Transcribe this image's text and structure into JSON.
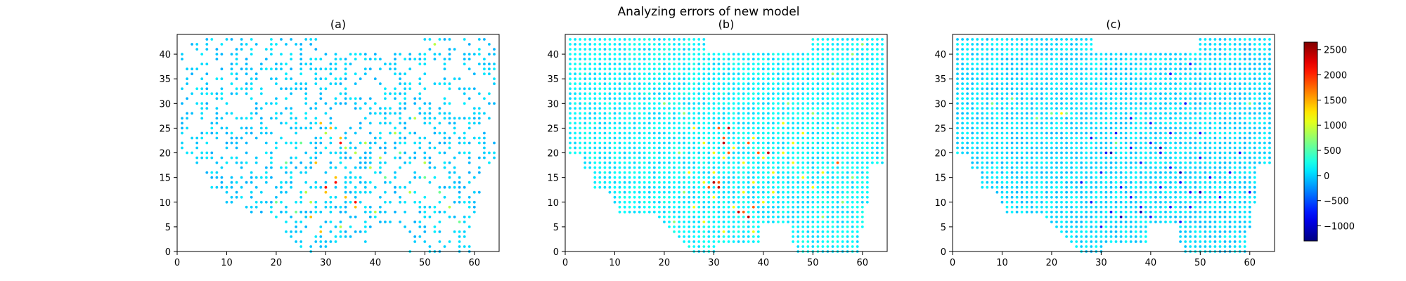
{
  "chart_data": {
    "type": "scatter",
    "title": "Analyzing errors of new model",
    "colormap": "jet",
    "colorbar": {
      "range": [
        -1300,
        2650
      ],
      "ticks": [
        -1000,
        -500,
        0,
        500,
        1000,
        1500,
        2000,
        2500
      ],
      "tick_labels": [
        "−1000",
        "−500",
        "0",
        "500",
        "1000",
        "1500",
        "2000",
        "2500"
      ]
    },
    "panels": [
      {
        "title": "(a)",
        "xlim": [
          0,
          65
        ],
        "ylim": [
          0,
          44
        ],
        "xticks": [
          0,
          10,
          20,
          30,
          40,
          50,
          60
        ],
        "yticks": [
          0,
          5,
          10,
          15,
          20,
          25,
          30,
          35,
          40
        ],
        "background_value": 0,
        "coverage": "sparse",
        "point_groups": [
          {
            "value": 1400,
            "points": [
              [
                29,
                26
              ],
              [
                31,
                25
              ],
              [
                33,
                23
              ],
              [
                28,
                18
              ],
              [
                32,
                15
              ],
              [
                30,
                12
              ],
              [
                34,
                11
              ],
              [
                27,
                7
              ],
              [
                36,
                9
              ],
              [
                29,
                4
              ]
            ]
          },
          {
            "value": 2100,
            "points": [
              [
                33,
                22
              ],
              [
                32,
                14
              ],
              [
                36,
                10
              ],
              [
                30,
                13
              ]
            ]
          },
          {
            "value": 900,
            "points": [
              [
                30,
                24
              ],
              [
                34,
                21
              ],
              [
                36,
                20
              ],
              [
                38,
                22
              ],
              [
                39,
                17
              ],
              [
                41,
                19
              ],
              [
                44,
                24
              ],
              [
                48,
                27
              ],
              [
                27,
                10
              ],
              [
                26,
                12
              ],
              [
                33,
                5
              ],
              [
                40,
                8
              ],
              [
                47,
                12
              ],
              [
                50,
                18
              ],
              [
                55,
                9
              ],
              [
                52,
                42
              ]
            ]
          },
          {
            "value": 600,
            "points": [
              [
                22,
                18
              ],
              [
                25,
                22
              ],
              [
                42,
                15
              ],
              [
                45,
                20
              ],
              [
                50,
                15
              ],
              [
                53,
                12
              ],
              [
                57,
                6
              ],
              [
                20,
                10
              ],
              [
                24,
                8
              ]
            ]
          }
        ]
      },
      {
        "title": "(b)",
        "xlim": [
          0,
          65
        ],
        "ylim": [
          0,
          44
        ],
        "xticks": [
          0,
          10,
          20,
          30,
          40,
          50,
          60
        ],
        "yticks": [
          0,
          5,
          10,
          15,
          20,
          25,
          30,
          35,
          40
        ],
        "background_value": 150,
        "coverage": "dense",
        "point_groups": [
          {
            "value": 1100,
            "points": [
              [
                26,
                25
              ],
              [
                28,
                22
              ],
              [
                30,
                20
              ],
              [
                32,
                19
              ],
              [
                34,
                21
              ],
              [
                36,
                18
              ],
              [
                38,
                23
              ],
              [
                40,
                19
              ],
              [
                42,
                16
              ],
              [
                44,
                20
              ],
              [
                46,
                18
              ],
              [
                48,
                15
              ],
              [
                50,
                13
              ],
              [
                52,
                16
              ],
              [
                28,
                14
              ],
              [
                30,
                11
              ],
              [
                34,
                9
              ],
              [
                36,
                12
              ],
              [
                38,
                14
              ],
              [
                26,
                9
              ],
              [
                28,
                6
              ],
              [
                32,
                4
              ],
              [
                38,
                4
              ],
              [
                40,
                10
              ],
              [
                42,
                12
              ],
              [
                30,
                16
              ],
              [
                25,
                16
              ],
              [
                46,
                22
              ],
              [
                48,
                24
              ],
              [
                44,
                26
              ]
            ]
          },
          {
            "value": 1800,
            "points": [
              [
                31,
                25
              ],
              [
                32,
                23
              ],
              [
                33,
                20
              ],
              [
                37,
                22
              ],
              [
                39,
                20
              ],
              [
                31,
                14
              ],
              [
                36,
                8
              ],
              [
                38,
                9
              ],
              [
                29,
                13
              ],
              [
                55,
                18
              ]
            ]
          },
          {
            "value": 2400,
            "points": [
              [
                32,
                22
              ],
              [
                33,
                25
              ],
              [
                30,
                14
              ],
              [
                35,
                8
              ],
              [
                37,
                7
              ],
              [
                41,
                20
              ],
              [
                31,
                13
              ]
            ]
          },
          {
            "value": 700,
            "points": [
              [
                23,
                20
              ],
              [
                24,
                28
              ],
              [
                20,
                30
              ],
              [
                45,
                30
              ],
              [
                50,
                28
              ],
              [
                55,
                25
              ],
              [
                58,
                15
              ],
              [
                56,
                10
              ],
              [
                52,
                7
              ],
              [
                24,
                12
              ],
              [
                22,
                6
              ],
              [
                54,
                36
              ],
              [
                58,
                40
              ],
              [
                60,
                42
              ]
            ]
          }
        ]
      },
      {
        "title": "(c)",
        "xlim": [
          0,
          65
        ],
        "ylim": [
          0,
          44
        ],
        "xticks": [
          0,
          10,
          20,
          30,
          40,
          50,
          60
        ],
        "yticks": [
          0,
          5,
          10,
          15,
          20,
          25,
          30,
          35,
          40
        ],
        "background_value": 50,
        "coverage": "dense",
        "point_groups": [
          {
            "value": -700,
            "points": [
              [
                28,
                23
              ],
              [
                31,
                20
              ],
              [
                33,
                24
              ],
              [
                36,
                21
              ],
              [
                38,
                18
              ],
              [
                40,
                22
              ],
              [
                42,
                20
              ],
              [
                44,
                17
              ],
              [
                46,
                14
              ],
              [
                48,
                12
              ],
              [
                50,
                19
              ],
              [
                52,
                15
              ],
              [
                30,
                16
              ],
              [
                34,
                13
              ],
              [
                36,
                11
              ],
              [
                38,
                9
              ],
              [
                40,
                7
              ],
              [
                44,
                9
              ],
              [
                46,
                6
              ],
              [
                32,
                8
              ],
              [
                30,
                5
              ],
              [
                28,
                10
              ],
              [
                26,
                14
              ],
              [
                42,
                13
              ],
              [
                48,
                9
              ],
              [
                54,
                11
              ],
              [
                56,
                16
              ],
              [
                58,
                20
              ],
              [
                50,
                24
              ],
              [
                44,
                24
              ],
              [
                40,
                26
              ],
              [
                36,
                27
              ],
              [
                60,
                12
              ],
              [
                47,
                30
              ],
              [
                44,
                36
              ],
              [
                48,
                38
              ]
            ]
          },
          {
            "value": -1100,
            "points": [
              [
                32,
                20
              ],
              [
                38,
                8
              ],
              [
                42,
                21
              ],
              [
                34,
                7
              ],
              [
                46,
                16
              ],
              [
                50,
                12
              ]
            ]
          },
          {
            "value": 600,
            "points": [
              [
                17,
                27
              ],
              [
                20,
                28
              ],
              [
                23,
                28
              ],
              [
                8,
                30
              ],
              [
                12,
                31
              ],
              [
                33,
                22
              ],
              [
                2,
                19
              ],
              [
                60,
                30
              ]
            ]
          },
          {
            "value": 1200,
            "points": [
              [
                22,
                28
              ]
            ]
          }
        ]
      }
    ]
  }
}
